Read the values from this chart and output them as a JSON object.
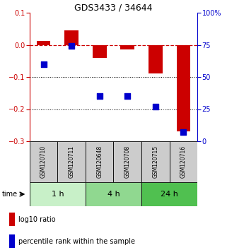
{
  "title": "GDS3433 / 34644",
  "samples": [
    "GSM120710",
    "GSM120711",
    "GSM120648",
    "GSM120708",
    "GSM120715",
    "GSM120716"
  ],
  "log10_ratio": [
    0.012,
    0.045,
    -0.04,
    -0.015,
    -0.09,
    -0.27
  ],
  "percentile_rank": [
    60,
    74,
    35,
    35,
    27,
    7
  ],
  "time_groups": [
    {
      "label": "1 h",
      "indices": [
        0,
        1
      ],
      "color": "#c8f0c8"
    },
    {
      "label": "4 h",
      "indices": [
        2,
        3
      ],
      "color": "#90d890"
    },
    {
      "label": "24 h",
      "indices": [
        4,
        5
      ],
      "color": "#50c050"
    }
  ],
  "ylim_left": [
    -0.3,
    0.1
  ],
  "ylim_right": [
    0,
    100
  ],
  "yticks_left": [
    0.1,
    0.0,
    -0.1,
    -0.2,
    -0.3
  ],
  "yticks_right": [
    100,
    75,
    50,
    25,
    0
  ],
  "bar_color": "#cc0000",
  "dot_color": "#0000cc",
  "dashed_line_color": "#cc0000",
  "bar_width": 0.5,
  "dot_size": 28,
  "sample_label_color": "#cccccc",
  "time_label_fontsize": 8,
  "axis_fontsize": 7,
  "title_fontsize": 9,
  "legend_fontsize": 7
}
